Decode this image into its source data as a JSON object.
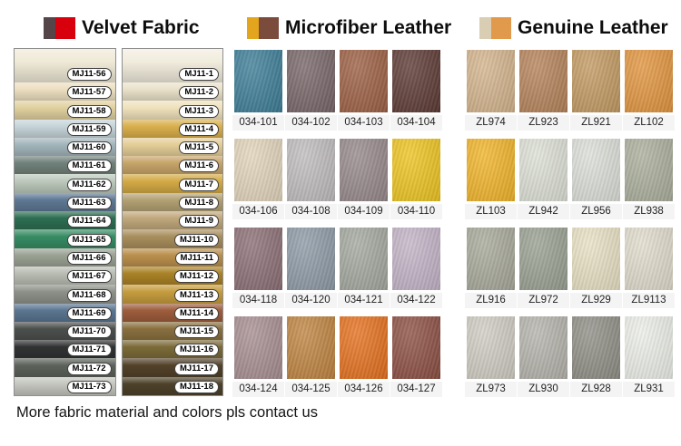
{
  "velvet": {
    "title": "Velvet Fabric",
    "icon_colors": [
      "#554549",
      "#d9000d"
    ],
    "left_column": [
      {
        "code": "MJ11-56",
        "color": "#efe9d6"
      },
      {
        "code": "MJ11-57",
        "color": "#ecdfc0"
      },
      {
        "code": "MJ11-58",
        "color": "#e0d09e"
      },
      {
        "code": "MJ11-59",
        "color": "#c5d3d8"
      },
      {
        "code": "MJ11-60",
        "color": "#a2b5bb"
      },
      {
        "code": "MJ11-61",
        "color": "#70817a"
      },
      {
        "code": "MJ11-62",
        "color": "#bcc8bb"
      },
      {
        "code": "MJ11-63",
        "color": "#5e7894"
      },
      {
        "code": "MJ11-64",
        "color": "#2d6e52"
      },
      {
        "code": "MJ11-65",
        "color": "#368c63"
      },
      {
        "code": "MJ11-66",
        "color": "#9aa294"
      },
      {
        "code": "MJ11-67",
        "color": "#b9bdb3"
      },
      {
        "code": "MJ11-68",
        "color": "#8d9088"
      },
      {
        "code": "MJ11-69",
        "color": "#5a7590"
      },
      {
        "code": "MJ11-70",
        "color": "#4c504d"
      },
      {
        "code": "MJ11-71",
        "color": "#303233"
      },
      {
        "code": "MJ11-72",
        "color": "#5d625b"
      },
      {
        "code": "MJ11-73",
        "color": "#c3c5be"
      }
    ],
    "right_column": [
      {
        "code": "MJ11-1",
        "color": "#f1ecdd"
      },
      {
        "code": "MJ11-2",
        "color": "#e9e1c9"
      },
      {
        "code": "MJ11-3",
        "color": "#eee1bb"
      },
      {
        "code": "MJ11-4",
        "color": "#d9ae4b"
      },
      {
        "code": "MJ11-5",
        "color": "#e4cd97"
      },
      {
        "code": "MJ11-6",
        "color": "#c7a569"
      },
      {
        "code": "MJ11-7",
        "color": "#d3a945"
      },
      {
        "code": "MJ11-8",
        "color": "#b3a173"
      },
      {
        "code": "MJ11-9",
        "color": "#c0a87c"
      },
      {
        "code": "MJ11-10",
        "color": "#a88e5c"
      },
      {
        "code": "MJ11-11",
        "color": "#ba8f4c"
      },
      {
        "code": "MJ11-12",
        "color": "#aa8226"
      },
      {
        "code": "MJ11-13",
        "color": "#c59c3e"
      },
      {
        "code": "MJ11-14",
        "color": "#9d5c3c"
      },
      {
        "code": "MJ11-15",
        "color": "#8a7040"
      },
      {
        "code": "MJ11-16",
        "color": "#7c6b39"
      },
      {
        "code": "MJ11-17",
        "color": "#53422a"
      },
      {
        "code": "MJ11-18",
        "color": "#4d4129"
      }
    ]
  },
  "microfiber": {
    "title": "Microfiber Leather",
    "icon_colors": [
      "#e3a51d",
      "#7b4b3b"
    ],
    "swatches": [
      {
        "code": "034-101",
        "color": "#3e7e97"
      },
      {
        "code": "034-102",
        "color": "#786769"
      },
      {
        "code": "034-103",
        "color": "#9d6044"
      },
      {
        "code": "034-104",
        "color": "#5d3a34"
      },
      {
        "code": "034-106",
        "color": "#e2d5bc"
      },
      {
        "code": "034-108",
        "color": "#c1bdbe"
      },
      {
        "code": "034-109",
        "color": "#97898b"
      },
      {
        "code": "034-110",
        "color": "#eec522"
      },
      {
        "code": "034-118",
        "color": "#8c7076"
      },
      {
        "code": "034-120",
        "color": "#8e9ba7"
      },
      {
        "code": "034-121",
        "color": "#a4a99f"
      },
      {
        "code": "034-122",
        "color": "#c4b4c7"
      },
      {
        "code": "034-124",
        "color": "#a88f93"
      },
      {
        "code": "034-125",
        "color": "#c08542"
      },
      {
        "code": "034-126",
        "color": "#e5711f"
      },
      {
        "code": "034-127",
        "color": "#8d5044"
      }
    ]
  },
  "genuine": {
    "title": "Genuine Leather",
    "icon_colors": [
      "#d9cdb3",
      "#e1994b"
    ],
    "swatches": [
      {
        "code": "ZL974",
        "color": "#d4b58d"
      },
      {
        "code": "ZL923",
        "color": "#b6845b"
      },
      {
        "code": "ZL921",
        "color": "#c39b63"
      },
      {
        "code": "ZL102",
        "color": "#e29640"
      },
      {
        "code": "ZL103",
        "color": "#f1b52a"
      },
      {
        "code": "ZL942",
        "color": "#dee1d6"
      },
      {
        "code": "ZL956",
        "color": "#dde0d9"
      },
      {
        "code": "ZL938",
        "color": "#acb09d"
      },
      {
        "code": "ZL916",
        "color": "#a9aa9b"
      },
      {
        "code": "ZL972",
        "color": "#9ba193"
      },
      {
        "code": "ZL929",
        "color": "#e9e1c5"
      },
      {
        "code": "ZL9113",
        "color": "#e1ddcd"
      },
      {
        "code": "ZL973",
        "color": "#d0cdc3"
      },
      {
        "code": "ZL930",
        "color": "#b6b4ac"
      },
      {
        "code": "ZL928",
        "color": "#908f87"
      },
      {
        "code": "ZL931",
        "color": "#edefe9"
      }
    ]
  },
  "footer": {
    "note": "More fabric material and colors pls contact us"
  }
}
